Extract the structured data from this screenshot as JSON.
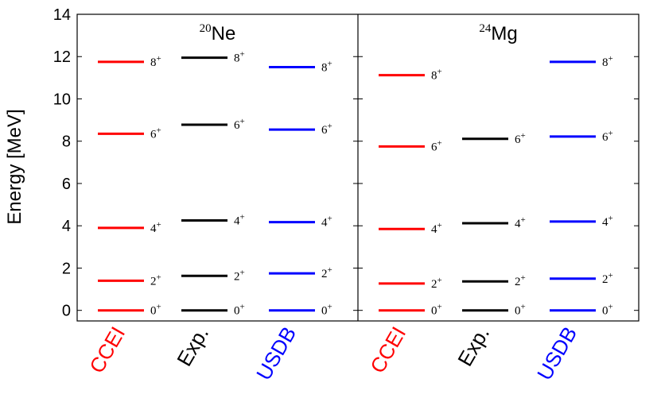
{
  "chart_data": {
    "type": "level-scheme",
    "ylabel": "Energy [MeV]",
    "ylim": [
      -0.5,
      14
    ],
    "yticks": [
      0,
      2,
      4,
      6,
      8,
      10,
      12,
      14
    ],
    "colors": {
      "CCEI": "#ff0000",
      "Exp.": "#000000",
      "USDB": "#0000ff"
    },
    "panels": [
      {
        "nucleus_mass": "20",
        "nucleus_symbol": "Ne",
        "categories": [
          "CCEI",
          "Exp.",
          "USDB"
        ],
        "series": [
          {
            "name": "CCEI",
            "levels": [
              {
                "spin": "0",
                "parity": "+",
                "energy": 0.0
              },
              {
                "spin": "2",
                "parity": "+",
                "energy": 1.4
              },
              {
                "spin": "4",
                "parity": "+",
                "energy": 3.9
              },
              {
                "spin": "6",
                "parity": "+",
                "energy": 8.35
              },
              {
                "spin": "8",
                "parity": "+",
                "energy": 11.75
              }
            ]
          },
          {
            "name": "Exp.",
            "levels": [
              {
                "spin": "0",
                "parity": "+",
                "energy": 0.0
              },
              {
                "spin": "2",
                "parity": "+",
                "energy": 1.63
              },
              {
                "spin": "4",
                "parity": "+",
                "energy": 4.25
              },
              {
                "spin": "6",
                "parity": "+",
                "energy": 8.78
              },
              {
                "spin": "8",
                "parity": "+",
                "energy": 11.95
              }
            ]
          },
          {
            "name": "USDB",
            "levels": [
              {
                "spin": "0",
                "parity": "+",
                "energy": 0.0
              },
              {
                "spin": "2",
                "parity": "+",
                "energy": 1.75
              },
              {
                "spin": "4",
                "parity": "+",
                "energy": 4.17
              },
              {
                "spin": "6",
                "parity": "+",
                "energy": 8.55
              },
              {
                "spin": "8",
                "parity": "+",
                "energy": 11.5
              }
            ]
          }
        ]
      },
      {
        "nucleus_mass": "24",
        "nucleus_symbol": "Mg",
        "categories": [
          "CCEI",
          "Exp.",
          "USDB"
        ],
        "series": [
          {
            "name": "CCEI",
            "levels": [
              {
                "spin": "0",
                "parity": "+",
                "energy": 0.0
              },
              {
                "spin": "2",
                "parity": "+",
                "energy": 1.27
              },
              {
                "spin": "4",
                "parity": "+",
                "energy": 3.85
              },
              {
                "spin": "6",
                "parity": "+",
                "energy": 7.75
              },
              {
                "spin": "8",
                "parity": "+",
                "energy": 11.12
              }
            ]
          },
          {
            "name": "Exp.",
            "levels": [
              {
                "spin": "0",
                "parity": "+",
                "energy": 0.0
              },
              {
                "spin": "2",
                "parity": "+",
                "energy": 1.37
              },
              {
                "spin": "4",
                "parity": "+",
                "energy": 4.12
              },
              {
                "spin": "6",
                "parity": "+",
                "energy": 8.11
              },
              {
                "spin": "8",
                "parity": "+",
                "energy": null
              }
            ]
          },
          {
            "name": "USDB",
            "levels": [
              {
                "spin": "0",
                "parity": "+",
                "energy": 0.0
              },
              {
                "spin": "2",
                "parity": "+",
                "energy": 1.5
              },
              {
                "spin": "4",
                "parity": "+",
                "energy": 4.2
              },
              {
                "spin": "6",
                "parity": "+",
                "energy": 8.22
              },
              {
                "spin": "8",
                "parity": "+",
                "energy": 11.75
              }
            ]
          }
        ]
      }
    ]
  }
}
